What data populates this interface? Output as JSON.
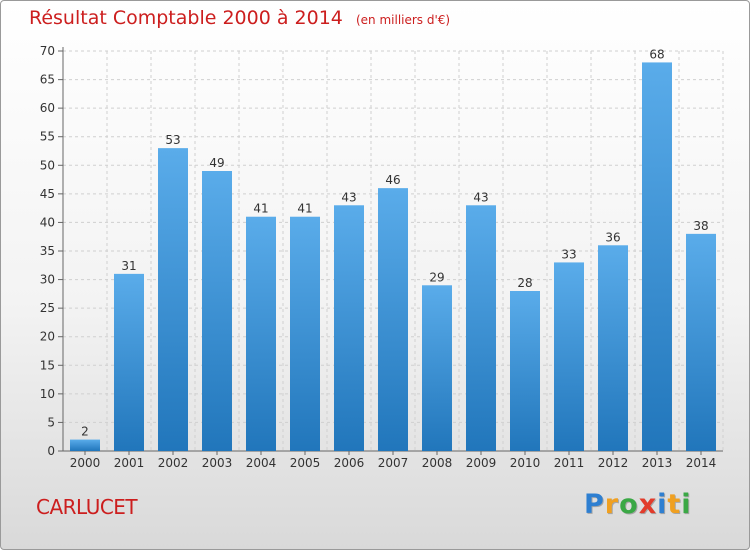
{
  "title": "Résultat Comptable 2000 à 2014",
  "subtitle": "(en milliers d'€)",
  "location": "CARLUCET",
  "brand": {
    "letters": [
      {
        "char": "P",
        "color": "#2e7fd1"
      },
      {
        "char": "r",
        "color": "#f0a020"
      },
      {
        "char": "o",
        "color": "#3aa845"
      },
      {
        "char": "x",
        "color": "#e23b2a"
      },
      {
        "char": "i",
        "color": "#2e7fd1"
      },
      {
        "char": "t",
        "color": "#f0a020"
      },
      {
        "char": "i",
        "color": "#3aa845"
      }
    ]
  },
  "colors": {
    "title": "#cc1e1e",
    "bar_top": "#5aacea",
    "bar_bottom": "#2176bb",
    "grid": "#d0d0d0",
    "axis_text": "#333333"
  },
  "chart_data": {
    "type": "bar",
    "categories": [
      "2000",
      "2001",
      "2002",
      "2003",
      "2004",
      "2005",
      "2006",
      "2007",
      "2008",
      "2009",
      "2010",
      "2011",
      "2012",
      "2013",
      "2014"
    ],
    "values": [
      2,
      31,
      53,
      49,
      41,
      41,
      43,
      46,
      29,
      43,
      28,
      33,
      36,
      68,
      38
    ],
    "value_labels": [
      "2",
      "31",
      "53",
      "49",
      "41",
      "41",
      "43",
      "46",
      "29",
      "43",
      "28",
      "33",
      "36",
      "68",
      "38"
    ],
    "title": "Résultat Comptable 2000 à 2014",
    "xlabel": "",
    "ylabel": "",
    "ylim": [
      0,
      70
    ],
    "yticks": [
      0,
      5,
      10,
      15,
      20,
      25,
      30,
      35,
      40,
      45,
      50,
      55,
      60,
      65,
      70
    ],
    "grid": true,
    "legend": "none"
  }
}
